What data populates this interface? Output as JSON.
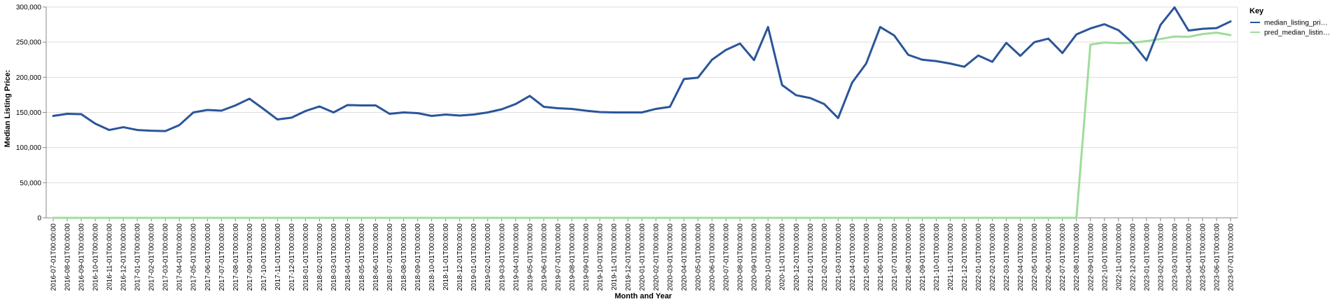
{
  "chart_data": {
    "type": "line",
    "xlabel": "Month and Year",
    "ylabel": "Median Listing Price:",
    "ylim": [
      0,
      300000
    ],
    "yticks": [
      "0",
      "50,000",
      "100,000",
      "150,000",
      "200,000",
      "250,000",
      "300,000"
    ],
    "grid": true,
    "legend": {
      "title": "Key",
      "placement": "right"
    },
    "x": [
      "2016-07-01T00:00:00",
      "2016-08-01T00:00:00",
      "2016-09-01T00:00:00",
      "2016-10-01T00:00:00",
      "2016-11-01T00:00:00",
      "2016-12-01T00:00:00",
      "2017-01-01T00:00:00",
      "2017-02-01T00:00:00",
      "2017-03-01T00:00:00",
      "2017-04-01T00:00:00",
      "2017-05-01T00:00:00",
      "2017-06-01T00:00:00",
      "2017-07-01T00:00:00",
      "2017-08-01T00:00:00",
      "2017-09-01T00:00:00",
      "2017-10-01T00:00:00",
      "2017-11-01T00:00:00",
      "2017-12-01T00:00:00",
      "2018-01-01T00:00:00",
      "2018-02-01T00:00:00",
      "2018-03-01T00:00:00",
      "2018-04-01T00:00:00",
      "2018-05-01T00:00:00",
      "2018-06-01T00:00:00",
      "2018-07-01T00:00:00",
      "2018-08-01T00:00:00",
      "2018-09-01T00:00:00",
      "2018-10-01T00:00:00",
      "2018-11-01T00:00:00",
      "2018-12-01T00:00:00",
      "2019-01-01T00:00:00",
      "2019-02-01T00:00:00",
      "2019-03-01T00:00:00",
      "2019-04-01T00:00:00",
      "2019-05-01T00:00:00",
      "2019-06-01T00:00:00",
      "2019-07-01T00:00:00",
      "2019-08-01T00:00:00",
      "2019-09-01T00:00:00",
      "2019-10-01T00:00:00",
      "2019-11-01T00:00:00",
      "2019-12-01T00:00:00",
      "2020-01-01T00:00:00",
      "2020-02-01T00:00:00",
      "2020-03-01T00:00:00",
      "2020-04-01T00:00:00",
      "2020-05-01T00:00:00",
      "2020-06-01T00:00:00",
      "2020-07-01T00:00:00",
      "2020-08-01T00:00:00",
      "2020-09-01T00:00:00",
      "2020-10-01T00:00:00",
      "2020-11-01T00:00:00",
      "2020-12-01T00:00:00",
      "2021-01-01T00:00:00",
      "2021-02-01T00:00:00",
      "2021-03-01T00:00:00",
      "2021-04-01T00:00:00",
      "2021-05-01T00:00:00",
      "2021-06-01T00:00:00",
      "2021-07-01T00:00:00",
      "2021-08-01T00:00:00",
      "2021-09-01T00:00:00",
      "2021-10-01T00:00:00",
      "2021-11-01T00:00:00",
      "2021-12-01T00:00:00",
      "2022-01-01T00:00:00",
      "2022-02-01T00:00:00",
      "2022-03-01T00:00:00",
      "2022-04-01T00:00:00",
      "2022-05-01T00:00:00",
      "2022-06-01T00:00:00",
      "2022-07-01T00:00:00",
      "2022-08-01T00:00:00",
      "2022-09-01T00:00:00",
      "2022-10-01T00:00:00",
      "2022-11-01T00:00:00",
      "2022-12-01T00:00:00",
      "2023-01-01T00:00:00",
      "2023-02-01T00:00:00",
      "2023-03-01T00:00:00",
      "2023-04-01T00:00:00",
      "2023-05-01T00:00:00",
      "2023-06-01T00:00:00",
      "2023-07-01T00:00:00"
    ],
    "series": [
      {
        "name": "median_listing_pri…",
        "color": "#2a5599",
        "values": [
          145000,
          148000,
          147500,
          134000,
          125000,
          129000,
          125000,
          124000,
          123500,
          132000,
          150000,
          153500,
          152500,
          160000,
          169500,
          155000,
          140000,
          142500,
          152000,
          158500,
          150000,
          160500,
          160000,
          160000,
          148000,
          150000,
          149000,
          145000,
          147000,
          145500,
          147000,
          150000,
          154500,
          162000,
          173500,
          158000,
          156000,
          155000,
          152500,
          150500,
          150000,
          150000,
          150000,
          155000,
          158000,
          197500,
          199500,
          225000,
          239000,
          248000,
          224500,
          271500,
          189000,
          174500,
          170500,
          162000,
          142000,
          192500,
          219500,
          271500,
          259500,
          232000,
          225000,
          223000,
          219500,
          215000,
          231000,
          222000,
          249000,
          230500,
          250000,
          255000,
          234500,
          261000,
          269500,
          275500,
          267000,
          249000,
          224000,
          274500,
          299500,
          266500,
          269000,
          270000,
          279500
        ]
      },
      {
        "name": "pred_median_listin…",
        "color": "#9fdd9a",
        "values": [
          0,
          0,
          0,
          0,
          0,
          0,
          0,
          0,
          0,
          0,
          0,
          0,
          0,
          0,
          0,
          0,
          0,
          0,
          0,
          0,
          0,
          0,
          0,
          0,
          0,
          0,
          0,
          0,
          0,
          0,
          0,
          0,
          0,
          0,
          0,
          0,
          0,
          0,
          0,
          0,
          0,
          0,
          0,
          0,
          0,
          0,
          0,
          0,
          0,
          0,
          0,
          0,
          0,
          0,
          0,
          0,
          0,
          0,
          0,
          0,
          0,
          0,
          0,
          0,
          0,
          0,
          0,
          0,
          0,
          0,
          0,
          0,
          0,
          0,
          246500,
          249500,
          248500,
          249000,
          251500,
          254500,
          258000,
          257500,
          261500,
          263500,
          260000
        ]
      }
    ]
  }
}
